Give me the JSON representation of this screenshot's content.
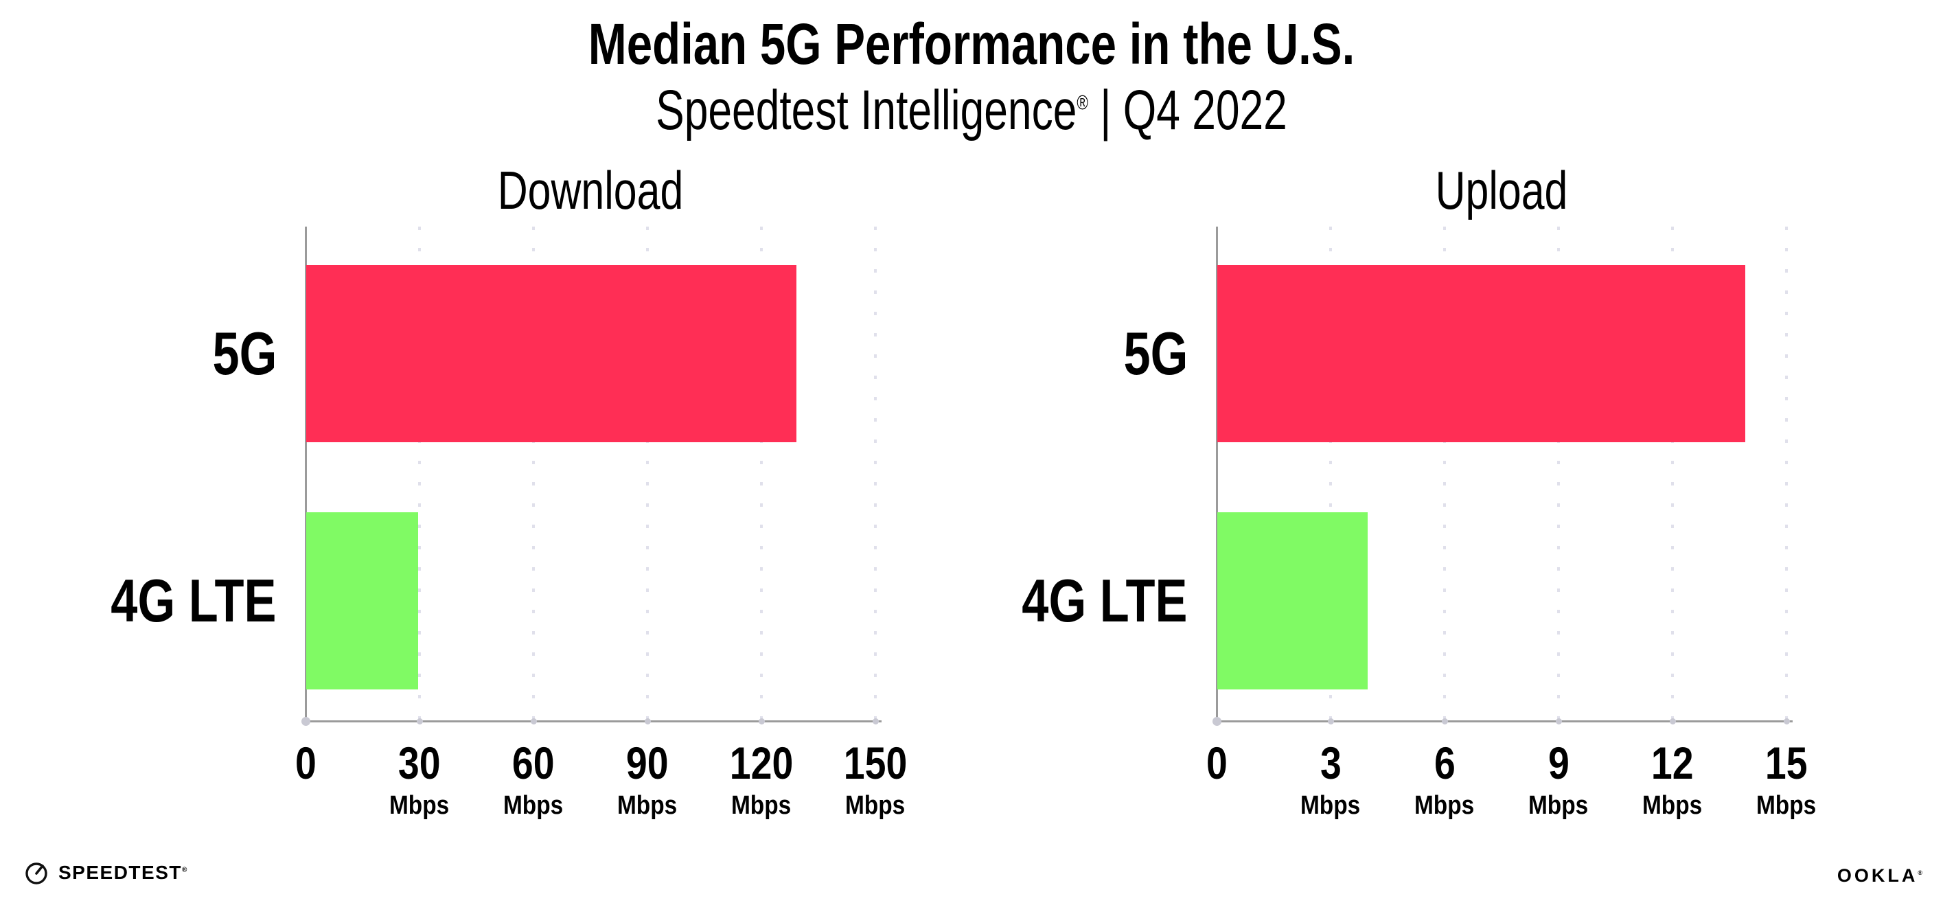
{
  "header": {
    "title": "Median 5G Performance in the U.S.",
    "subtitle_brand": "Speedtest Intelligence",
    "subtitle_registered": "®",
    "subtitle_rest": " | Q4 2022"
  },
  "chart_data": [
    {
      "type": "bar",
      "orientation": "horizontal",
      "title": "Download",
      "categories": [
        "5G",
        "4G LTE"
      ],
      "values": [
        129,
        29.5
      ],
      "unit": "Mbps",
      "xlim": [
        0,
        150
      ],
      "xticks": [
        0,
        30,
        60,
        90,
        120,
        150
      ],
      "xtick_unit_label": "Mbps",
      "bar_colors": [
        "#FF2E55",
        "#80FA64"
      ],
      "grid": "vertical-dotted",
      "legend": "none"
    },
    {
      "type": "bar",
      "orientation": "horizontal",
      "title": "Upload",
      "categories": [
        "5G",
        "4G LTE"
      ],
      "values": [
        13.9,
        3.95
      ],
      "unit": "Mbps",
      "xlim": [
        0,
        15
      ],
      "xticks": [
        0,
        3,
        6,
        9,
        12,
        15
      ],
      "xtick_unit_label": "Mbps",
      "bar_colors": [
        "#FF2E55",
        "#80FA64"
      ],
      "grid": "vertical-dotted",
      "legend": "none"
    }
  ],
  "colors": {
    "bar_5g": "#FF2E55",
    "bar_4g_lte": "#80FA64",
    "axis": "#9B9B9B",
    "grid_dots": "#E0E0EB",
    "tick_dots": "#C9C9D3",
    "text": "#000000",
    "background": "#FFFFFF"
  },
  "footer": {
    "speedtest_logo_text": "SPEEDTEST",
    "speedtest_registered": "®",
    "speedtest_icon": "speedtest-gauge-icon",
    "ookla_logo_text": "OOKLA",
    "ookla_registered": "®"
  }
}
